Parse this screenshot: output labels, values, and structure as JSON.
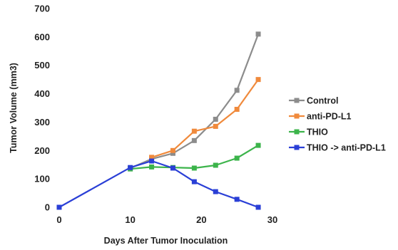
{
  "chart_data": {
    "type": "line",
    "title": "",
    "xlabel": "Days After Tumor Inoculation",
    "ylabel": "Tumor Volume (mm3)",
    "xlim": [
      0,
      30
    ],
    "ylim": [
      0,
      700
    ],
    "x_ticks": [
      0,
      10,
      20,
      30
    ],
    "y_ticks": [
      0,
      100,
      200,
      300,
      400,
      500,
      600,
      700
    ],
    "grid": false,
    "legend_position": "right",
    "marker": "square",
    "series": [
      {
        "name": "Control",
        "color": "#8c8c8c",
        "x": [
          10,
          13,
          16,
          19,
          22,
          25,
          28
        ],
        "y": [
          138,
          170,
          190,
          235,
          310,
          412,
          610
        ]
      },
      {
        "name": "anti-PD-L1",
        "color": "#f08a3c",
        "x": [
          13,
          16,
          19,
          22,
          25,
          28
        ],
        "y": [
          176,
          200,
          268,
          285,
          345,
          450
        ]
      },
      {
        "name": "THIO",
        "color": "#3cb44b",
        "x": [
          10,
          13,
          16,
          19,
          22,
          25,
          28
        ],
        "y": [
          135,
          142,
          140,
          138,
          148,
          173,
          218
        ]
      },
      {
        "name": "THIO -> anti-PD-L1",
        "color": "#2a3fd6",
        "x": [
          0,
          10,
          13,
          16,
          19,
          22,
          25,
          28
        ],
        "y": [
          0,
          140,
          163,
          138,
          90,
          55,
          28,
          0
        ]
      }
    ]
  }
}
